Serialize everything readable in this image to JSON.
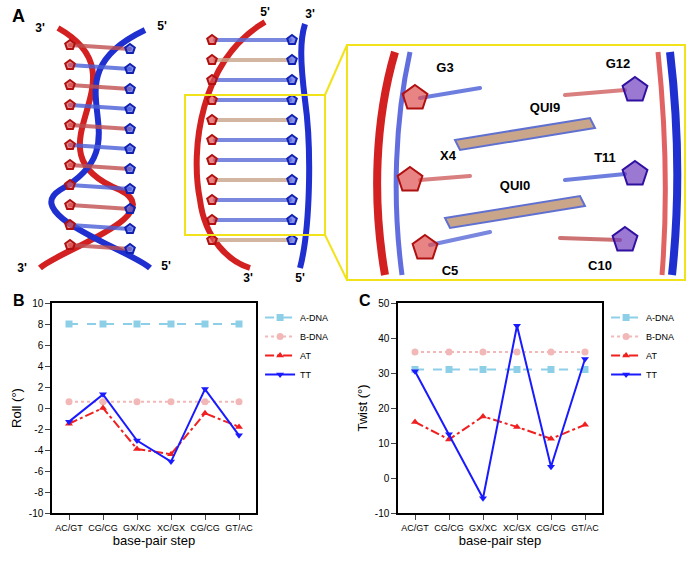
{
  "panel_a": {
    "label": "A",
    "left_ends": [
      "3'",
      "5'",
      "3'",
      "5'"
    ],
    "middle_ends": [
      "5'",
      "3'",
      "3'",
      "5'"
    ],
    "zoom_labels": [
      "G3",
      "X4",
      "C5",
      "QUI9",
      "QUI0",
      "G12",
      "T11",
      "C10"
    ]
  },
  "chart_data": [
    {
      "type": "line",
      "title": "B",
      "y_label": "Roll (°)",
      "x_label": "base-pair step",
      "categories": [
        "AC/GT",
        "CG/CG",
        "GX/XC",
        "XC/GX",
        "CG/CG",
        "GT/AC"
      ],
      "ylim": [
        -10,
        10
      ],
      "yticks": [
        -10,
        -8,
        -6,
        -4,
        -2,
        0,
        2,
        4,
        6,
        8,
        10
      ],
      "grid": false,
      "legend": "upper right",
      "series": [
        {
          "name": "A-DNA",
          "color": "#8ecfe8",
          "marker": "square",
          "line_style": "dash",
          "values": [
            8,
            8,
            8,
            8,
            8,
            8
          ]
        },
        {
          "name": "B-DNA",
          "color": "#f2b8b8",
          "marker": "circle",
          "line_style": "dot",
          "values": [
            0.6,
            0.6,
            0.6,
            0.6,
            0.6,
            0.6
          ]
        },
        {
          "name": "AT",
          "color": "#f02020",
          "marker": "triangle-up",
          "line_style": "dashdot",
          "values": [
            -1.5,
            0,
            -3.9,
            -4.4,
            -0.5,
            -1.8
          ]
        },
        {
          "name": "TT",
          "color": "#1a1aff",
          "marker": "triangle-down",
          "line_style": "solid",
          "values": [
            -1.3,
            1.3,
            -3.1,
            -5.1,
            1.8,
            -2.6
          ]
        }
      ]
    },
    {
      "type": "line",
      "title": "C",
      "y_label": "Twist (°)",
      "x_label": "base-pair step",
      "categories": [
        "AC/GT",
        "CG/CG",
        "GX/XC",
        "XC/GX",
        "CG/CG",
        "GT/AC"
      ],
      "ylim": [
        -10,
        50
      ],
      "yticks": [
        -10,
        0,
        10,
        20,
        30,
        40,
        50
      ],
      "grid": false,
      "legend": "upper right",
      "series": [
        {
          "name": "A-DNA",
          "color": "#8ecfe8",
          "marker": "square",
          "line_style": "dash",
          "values": [
            31,
            31,
            31,
            31,
            31,
            31
          ]
        },
        {
          "name": "B-DNA",
          "color": "#f2b8b8",
          "marker": "circle",
          "line_style": "dot",
          "values": [
            36,
            36,
            36,
            36,
            36,
            36
          ]
        },
        {
          "name": "AT",
          "color": "#f02020",
          "marker": "triangle-up",
          "line_style": "dashdot",
          "values": [
            16,
            11,
            17.6,
            14.6,
            11.2,
            15.2
          ]
        },
        {
          "name": "TT",
          "color": "#1a1aff",
          "marker": "triangle-down",
          "line_style": "solid",
          "values": [
            30.5,
            12.5,
            -5.8,
            43.5,
            3.2,
            34
          ]
        }
      ]
    }
  ]
}
